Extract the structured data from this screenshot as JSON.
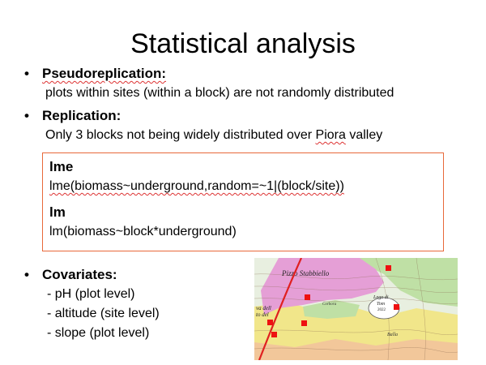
{
  "slide": {
    "title": "Statistical analysis",
    "pseudoreplication": {
      "heading": "Pseudoreplication:",
      "text": "plots within sites (within a block) are not randomly distributed"
    },
    "replication": {
      "heading": "Replication:",
      "text_before": "Only 3 blocks not being widely distributed over ",
      "text_piora": "Piora",
      "text_after": " valley"
    },
    "code": {
      "lme_heading": "lme",
      "lme_formula": "lme(biomass~underground,random=~1|(block/site))",
      "lm_heading": "lm",
      "lm_formula": "lm(biomass~block*underground)"
    },
    "covariates": {
      "heading": "Covariates:",
      "items": [
        "- pH (plot level)",
        "- altitude (site level)",
        "- slope (plot level)"
      ]
    },
    "map": {
      "label_top": "Pizzo Stabbiello",
      "lake_name": "Lago di",
      "lake_name2": "Tom",
      "lake_elev": "2022",
      "label_left1": "va dell",
      "label_left2": "to del",
      "label_bottom": "Balla",
      "label_mid": "Corbora",
      "colors": {
        "pink": "#e59fd6",
        "green": "#bfe0a5",
        "yellow": "#f1e68a",
        "orange": "#f2c79a",
        "boundary": "#e02020",
        "marker": "#ee1111"
      }
    }
  }
}
